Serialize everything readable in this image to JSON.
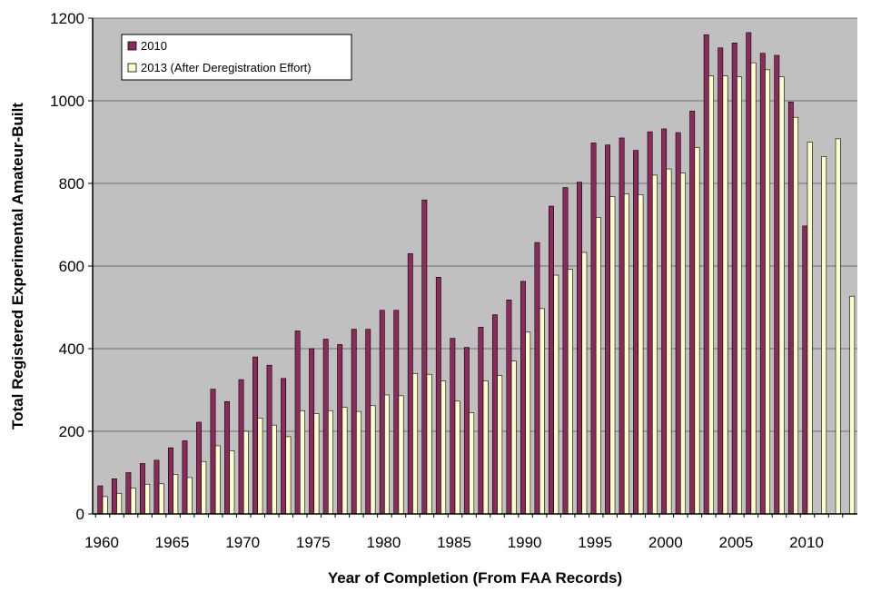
{
  "chart_data": {
    "type": "bar",
    "xlabel": "Year of Completion (From FAA Records)",
    "ylabel": "Total Registered Experimental Amateur-Built",
    "ylim": [
      0,
      1200
    ],
    "yticks": [
      0,
      200,
      400,
      600,
      800,
      1000,
      1200
    ],
    "xticks": [
      1960,
      1965,
      1970,
      1975,
      1980,
      1985,
      1990,
      1995,
      2000,
      2005,
      2010
    ],
    "grid": true,
    "legend": "top-left",
    "categories": [
      1960,
      1961,
      1962,
      1963,
      1964,
      1965,
      1966,
      1967,
      1968,
      1969,
      1970,
      1971,
      1972,
      1973,
      1974,
      1975,
      1976,
      1977,
      1978,
      1979,
      1980,
      1981,
      1982,
      1983,
      1984,
      1985,
      1986,
      1987,
      1988,
      1989,
      1990,
      1991,
      1992,
      1993,
      1994,
      1995,
      1996,
      1997,
      1998,
      1999,
      2000,
      2001,
      2002,
      2003,
      2004,
      2005,
      2006,
      2007,
      2008,
      2009,
      2010,
      2011,
      2012,
      2013
    ],
    "series": [
      {
        "name": "2010",
        "color": "#8c2a5e",
        "values": [
          68,
          85,
          100,
          122,
          130,
          160,
          177,
          222,
          302,
          272,
          325,
          380,
          360,
          328,
          443,
          400,
          423,
          410,
          447,
          447,
          493,
          493,
          630,
          760,
          573,
          425,
          403,
          452,
          482,
          518,
          563,
          657,
          745,
          790,
          803,
          898,
          893,
          910,
          880,
          925,
          932,
          923,
          975,
          1160,
          1128,
          1140,
          1165,
          1115,
          1110,
          997,
          697,
          null,
          null,
          null
        ]
      },
      {
        "name": "2013 (After Deregistration Effort)",
        "color": "#ffffcc",
        "values": [
          42,
          50,
          63,
          72,
          73,
          95,
          88,
          127,
          165,
          153,
          200,
          232,
          215,
          187,
          250,
          243,
          250,
          258,
          248,
          262,
          288,
          286,
          340,
          338,
          322,
          273,
          245,
          322,
          335,
          370,
          440,
          497,
          578,
          592,
          633,
          718,
          768,
          775,
          773,
          820,
          835,
          825,
          887,
          1060,
          1060,
          1058,
          1092,
          1075,
          1058,
          960,
          900,
          865,
          908,
          527
        ]
      }
    ]
  }
}
